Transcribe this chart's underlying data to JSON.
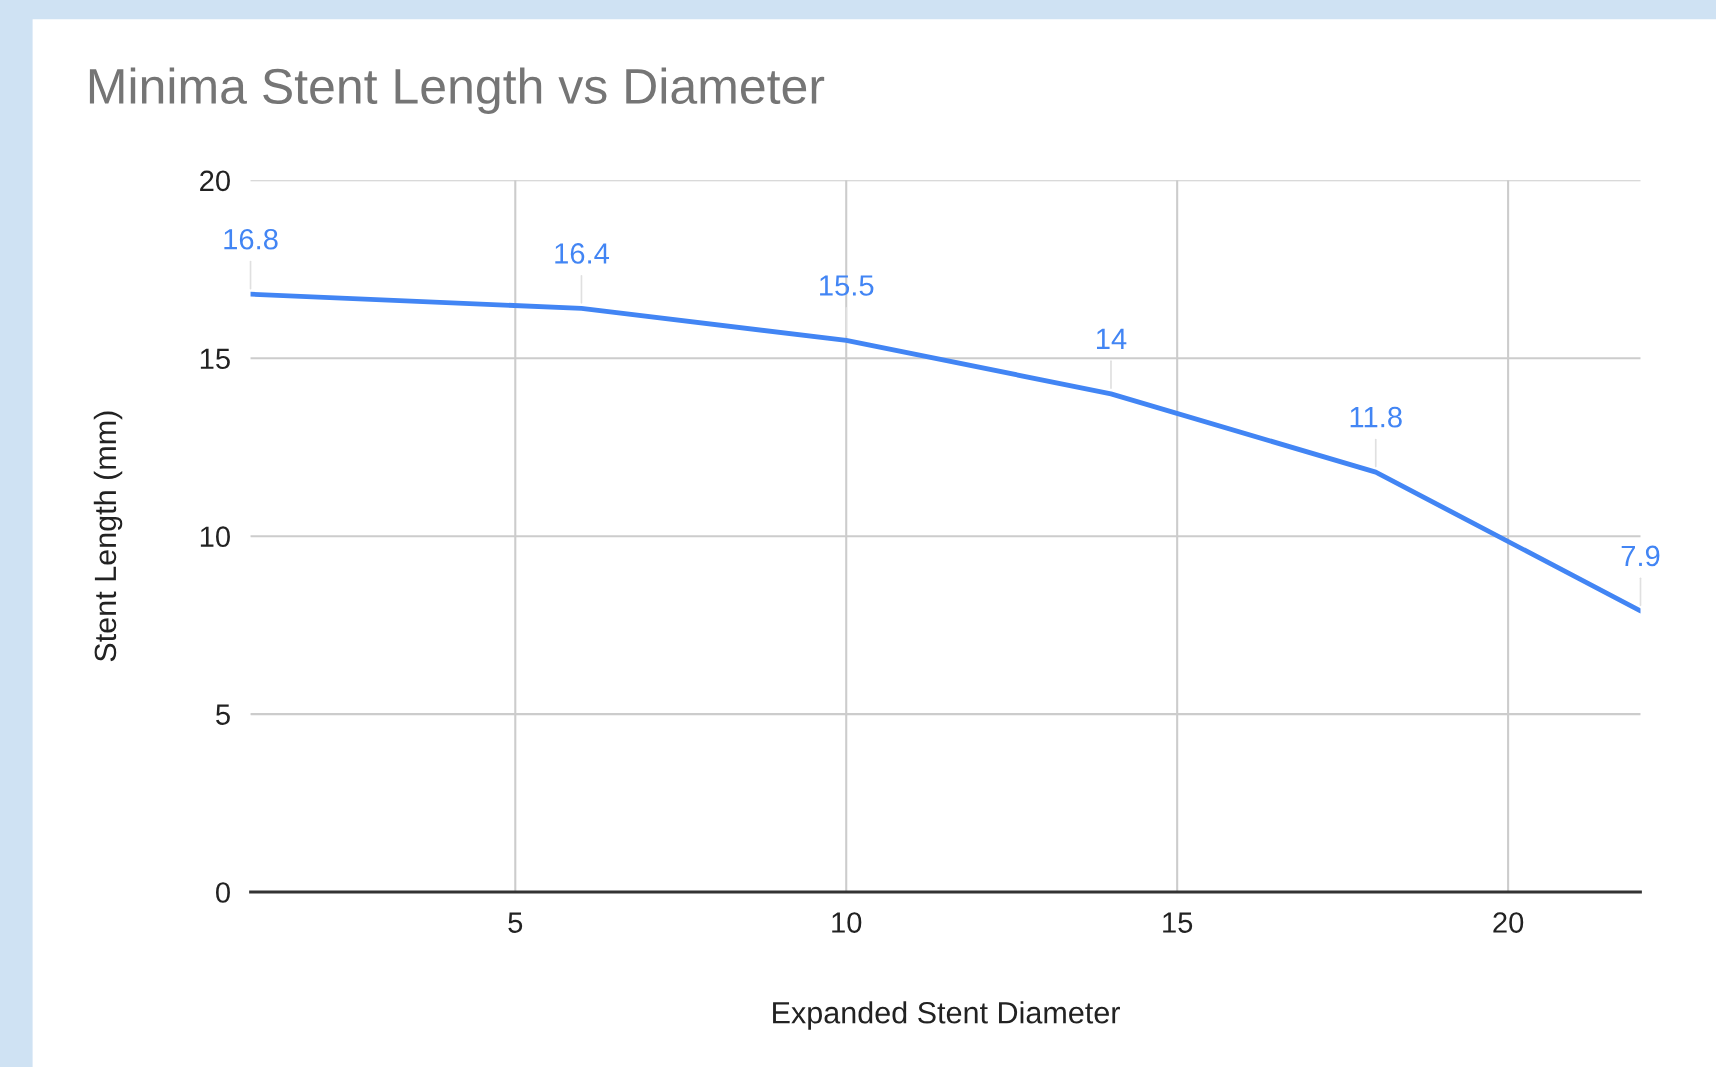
{
  "chart_data": {
    "type": "line",
    "title": "Minima Stent Length vs Diameter",
    "xlabel": "Expanded Stent Diameter",
    "ylabel": "Stent Length (mm)",
    "x": [
      1,
      6,
      10,
      14,
      18,
      22
    ],
    "series": [
      {
        "color": "#4285f4",
        "values": [
          16.8,
          16.4,
          15.5,
          14,
          11.8,
          7.9
        ]
      }
    ],
    "xlim": [
      1,
      22
    ],
    "xticks": [
      5,
      10,
      15,
      20
    ],
    "ylim": [
      0,
      20
    ],
    "yticks": [
      0,
      5,
      10,
      15,
      20
    ],
    "grid": true,
    "data_labels": true,
    "marker": "none",
    "line_style": "solid"
  }
}
